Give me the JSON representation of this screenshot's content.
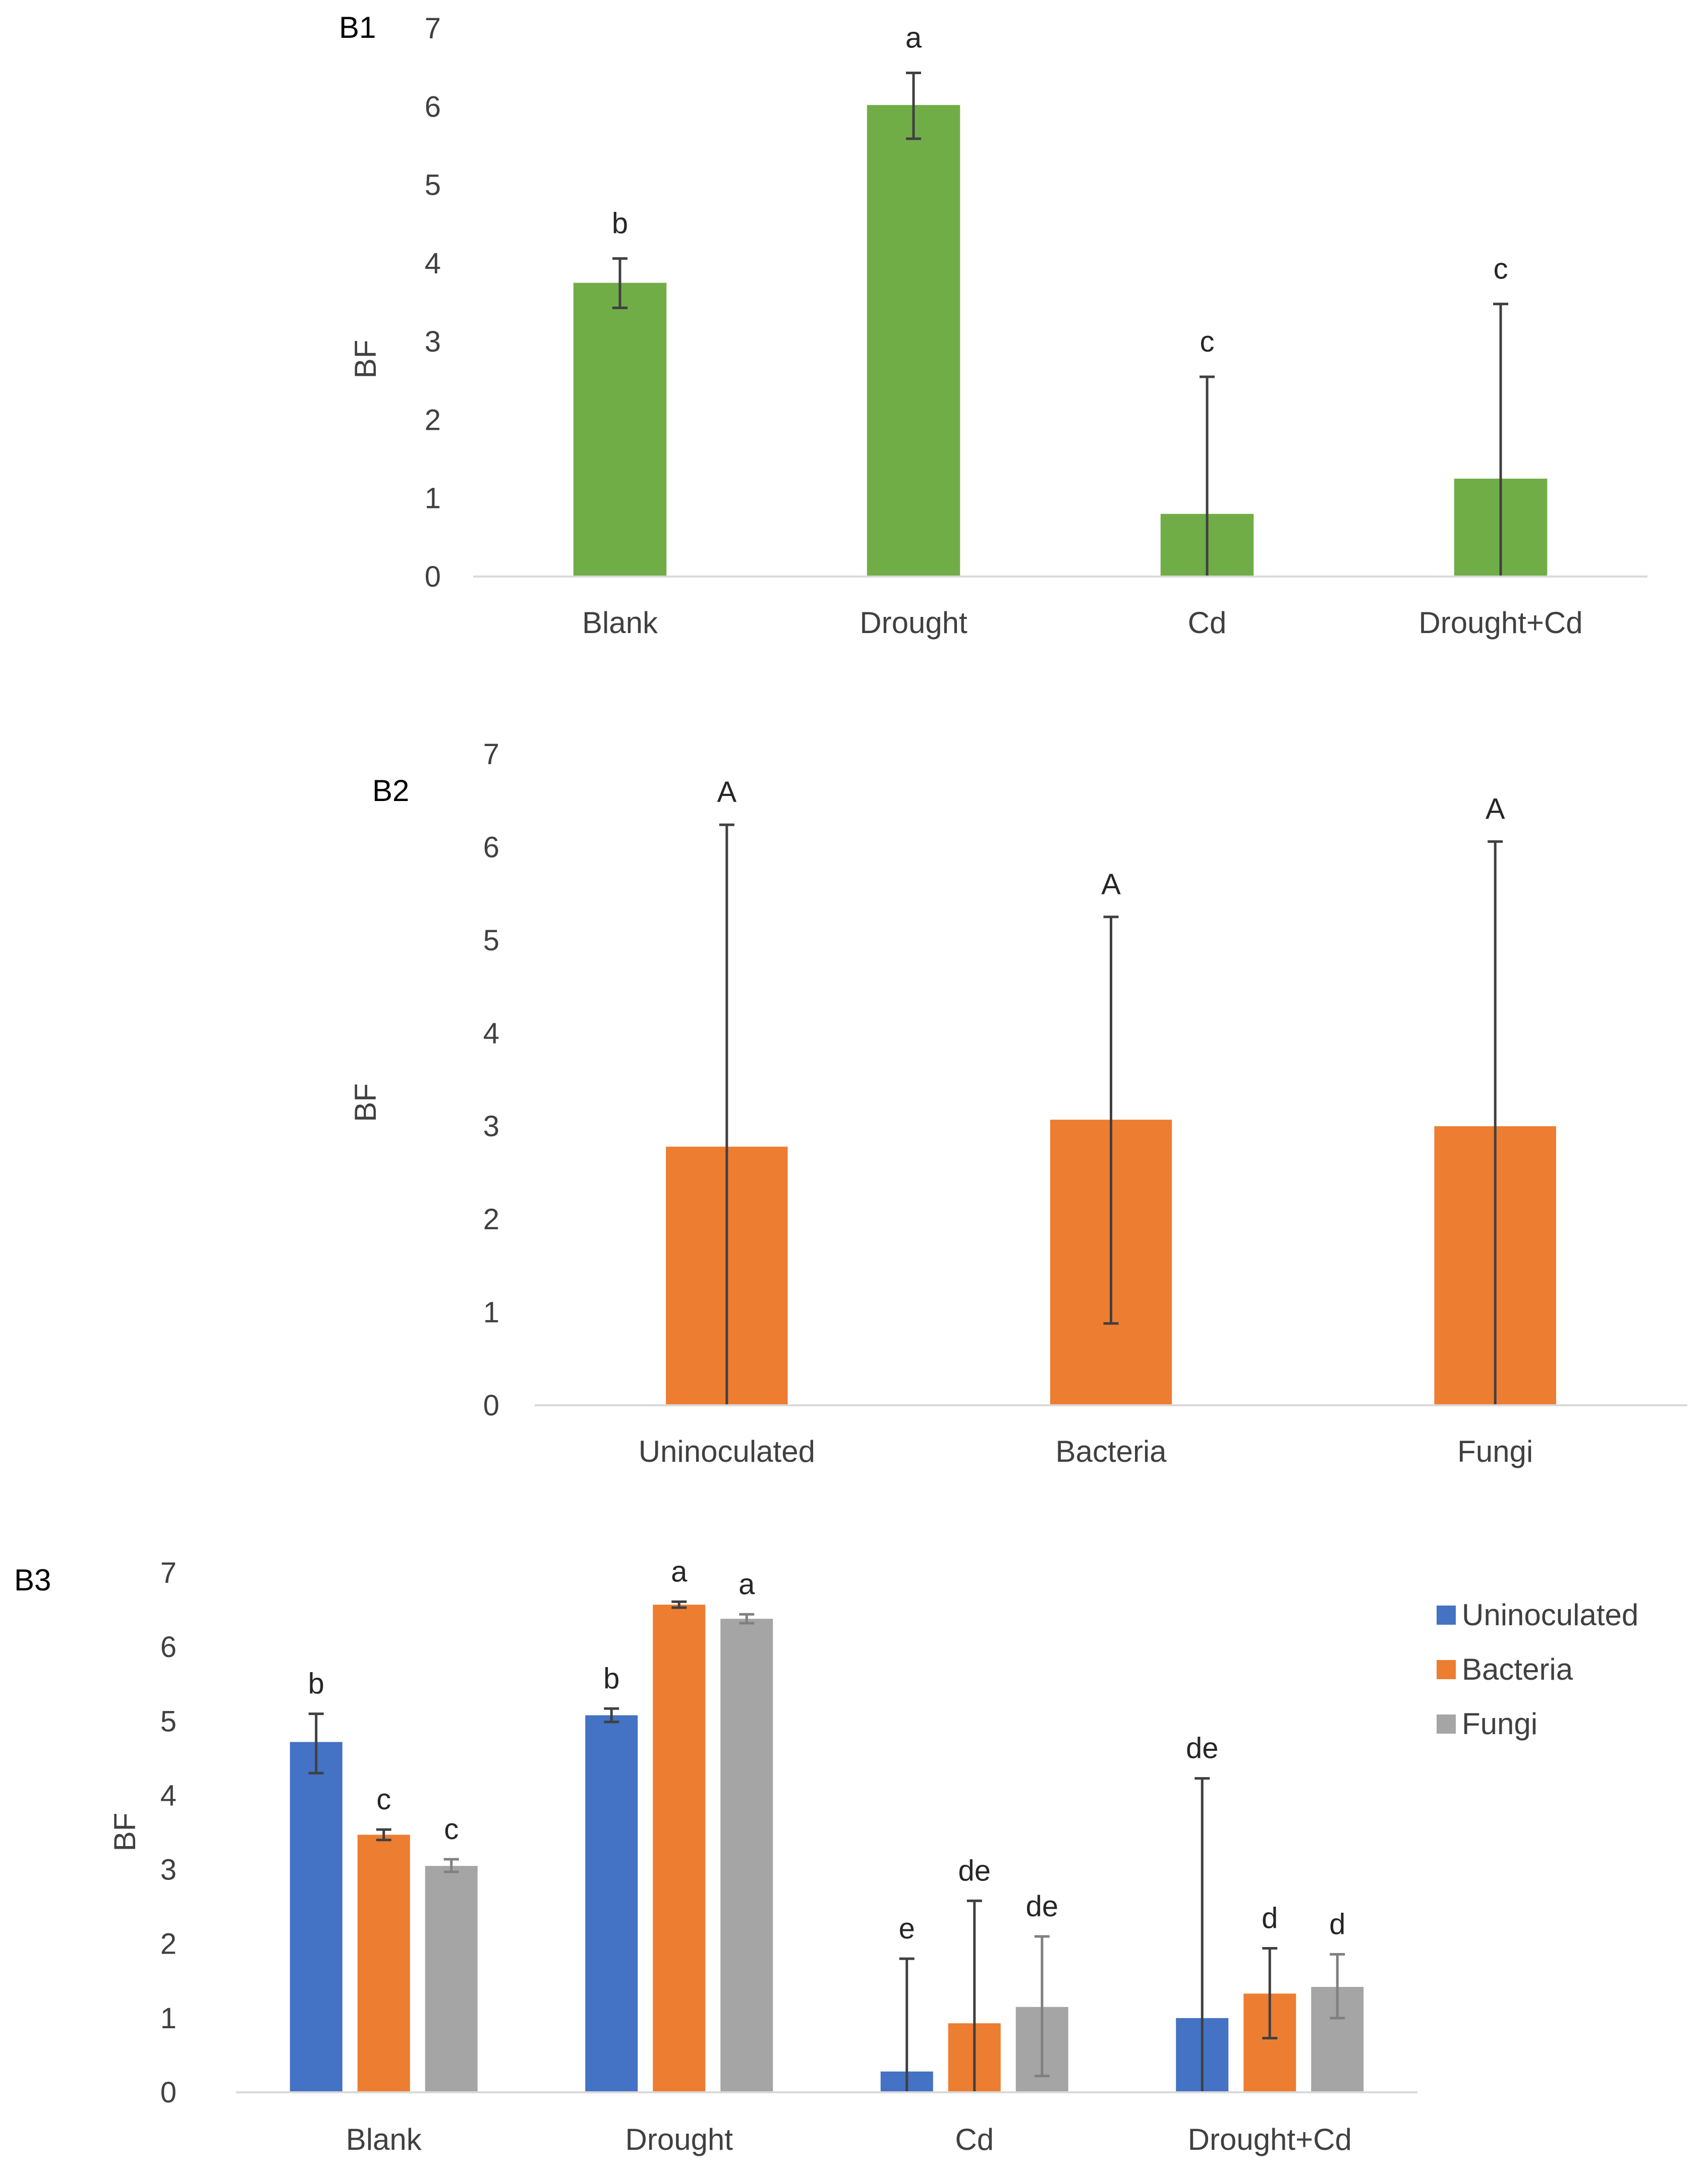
{
  "chart_data": [
    {
      "id": "B1",
      "type": "bar",
      "panel_label": "B1",
      "ylabel": "BF",
      "ylim": [
        0,
        7
      ],
      "y_ticks": [
        "0",
        "1",
        "2",
        "3",
        "4",
        "5",
        "6",
        "7"
      ],
      "categories": [
        "Blank",
        "Drought",
        "Cd",
        "Drought+Cd"
      ],
      "series": [
        {
          "name": "BF",
          "color": "#70AD47",
          "values": [
            3.75,
            6.02,
            0.8,
            1.25
          ],
          "error_low": [
            3.43,
            5.59,
            0.0,
            0.0
          ],
          "error_high": [
            4.06,
            6.43,
            2.55,
            3.48
          ],
          "labels": [
            "b",
            "a",
            "c",
            "c"
          ]
        }
      ],
      "legend": false,
      "grid": false
    },
    {
      "id": "B2",
      "type": "bar",
      "panel_label": "B2",
      "ylabel": "BF",
      "ylim": [
        0,
        7
      ],
      "y_ticks": [
        "0",
        "1",
        "2",
        "3",
        "4",
        "5",
        "6",
        "7"
      ],
      "categories": [
        "Uninoculated",
        "Bacteria",
        "Fungi"
      ],
      "series": [
        {
          "name": "BF",
          "color": "#ED7D31",
          "values": [
            2.78,
            3.07,
            3.0
          ],
          "error_low": [
            0.0,
            0.88,
            0.0
          ],
          "error_high": [
            6.24,
            5.25,
            6.06
          ],
          "labels": [
            "A",
            "A",
            "A"
          ]
        }
      ],
      "legend": false,
      "grid": false
    },
    {
      "id": "B3",
      "type": "bar",
      "panel_label": "B3",
      "ylabel": "BF",
      "ylim": [
        0,
        7
      ],
      "y_ticks": [
        "0",
        "1",
        "2",
        "3",
        "4",
        "5",
        "6",
        "7"
      ],
      "categories": [
        "Blank",
        "Drought",
        "Cd",
        "Drought+Cd"
      ],
      "series": [
        {
          "name": "Uninoculated",
          "color": "#4472C4",
          "values": [
            4.72,
            5.08,
            0.28,
            1.0
          ],
          "error_low": [
            4.3,
            4.99,
            0.0,
            0.0
          ],
          "error_high": [
            5.1,
            5.17,
            1.8,
            4.23
          ],
          "labels": [
            "b",
            "b",
            "e",
            "de"
          ]
        },
        {
          "name": "Bacteria",
          "color": "#ED7D31",
          "values": [
            3.47,
            6.57,
            0.93,
            1.33
          ],
          "error_low": [
            3.4,
            6.53,
            0.0,
            0.73
          ],
          "error_high": [
            3.54,
            6.61,
            2.58,
            1.94
          ],
          "labels": [
            "c",
            "a",
            "de",
            "d"
          ]
        },
        {
          "name": "Fungi",
          "color": "#A5A5A5",
          "values": [
            3.05,
            6.38,
            1.15,
            1.42
          ],
          "error_low": [
            2.97,
            6.32,
            0.22,
            1.0
          ],
          "error_high": [
            3.14,
            6.44,
            2.1,
            1.86
          ],
          "labels": [
            "c",
            "a",
            "de",
            "d"
          ]
        }
      ],
      "legend": true,
      "legend_position": "top-right",
      "grid": false
    }
  ]
}
